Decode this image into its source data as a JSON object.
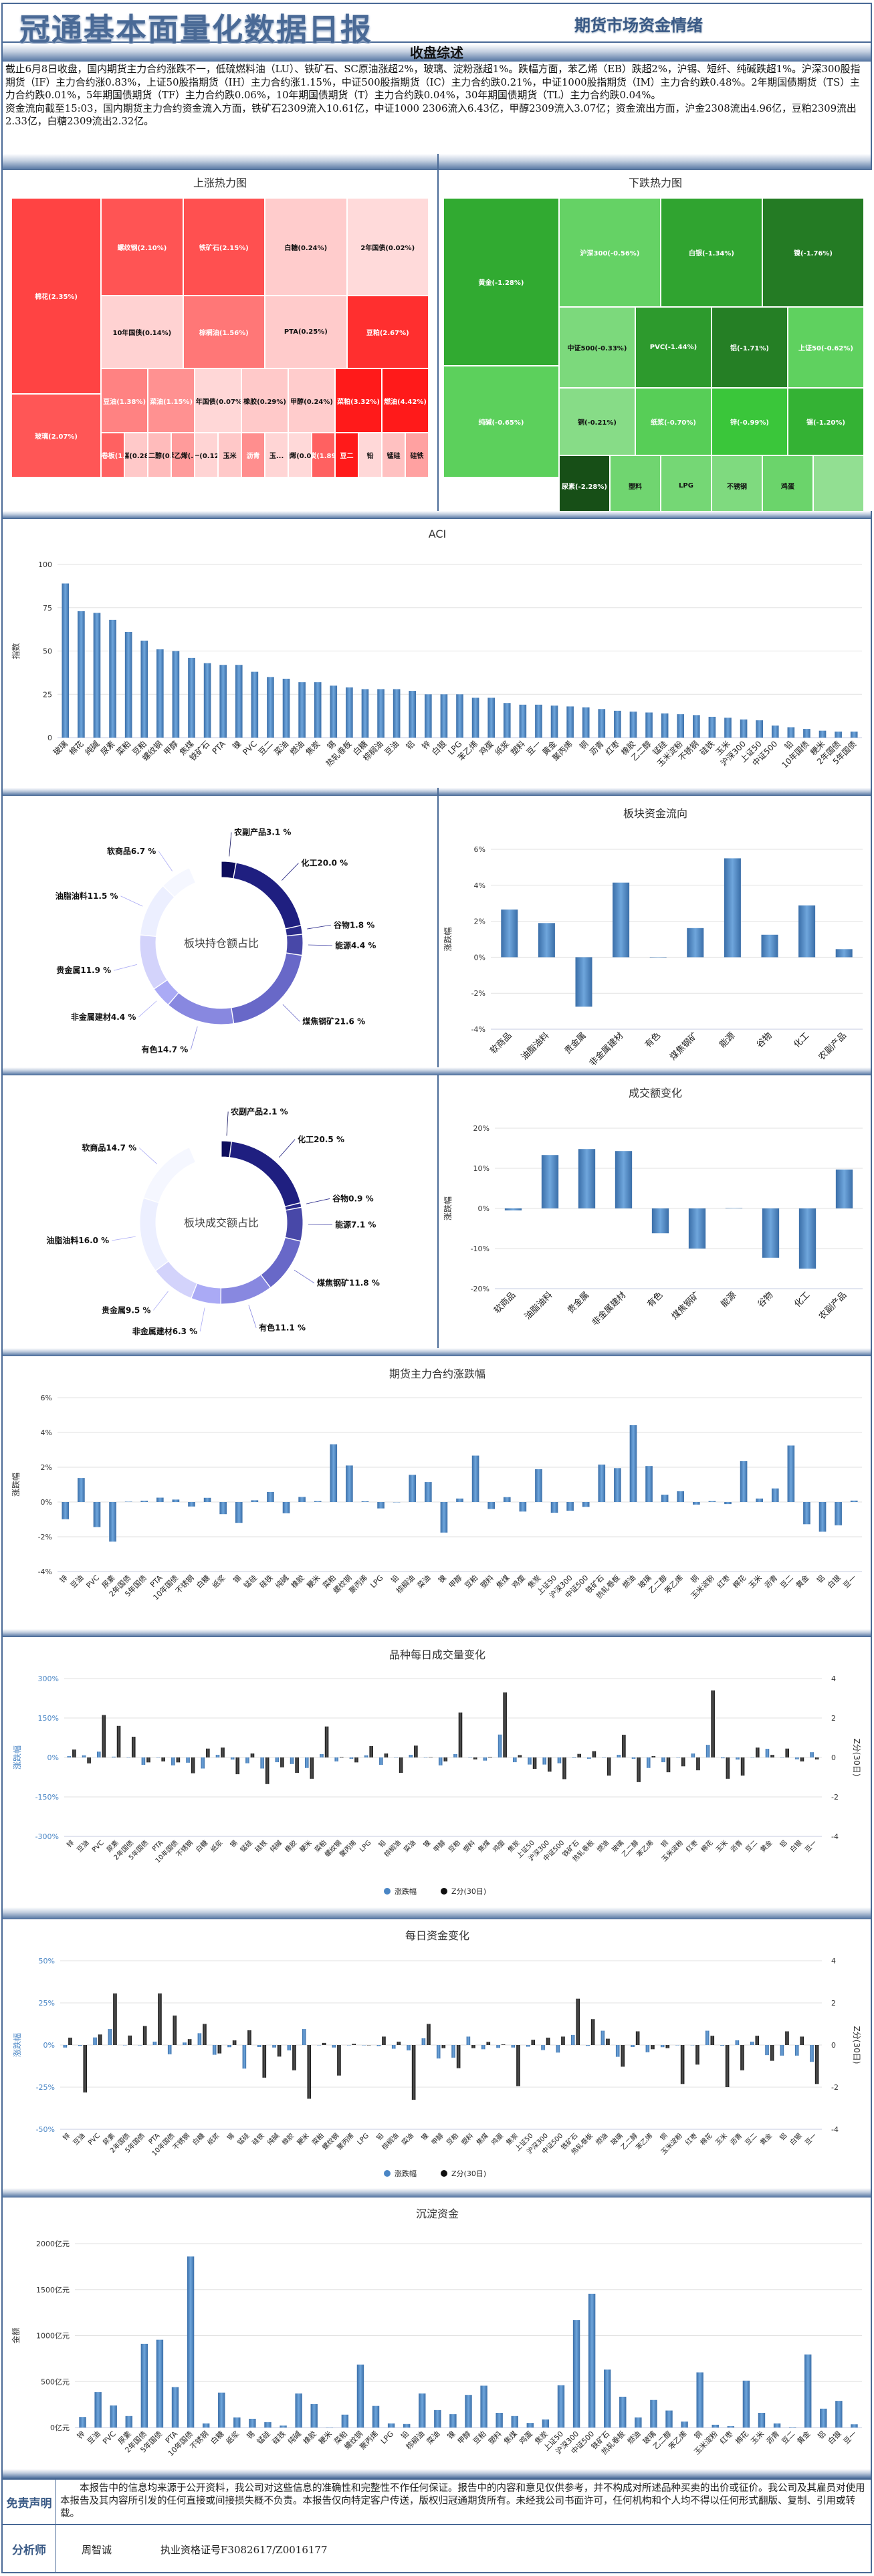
{
  "header": {
    "title": "冠通基本面量化数据日报",
    "subtitle": "期货市场资金情绪"
  },
  "summary": {
    "heading": "收盘综述",
    "paragraph1": "截止6月8日收盘，国内期货主力合约涨跌不一，低硫燃料油（LU）、铁矿石、SC原油涨超2%，玻璃、淀粉涨超1%。跌幅方面，苯乙烯（EB）跌超2%，沪锡、短纤、纯碱跌超1%。沪深300股指期货（IF）主力合约涨0.83%，上证50股指期货（IH）主力合约涨1.15%，中证500股指期货（IC）主力合约跌0.21%，中证1000股指期货（IM）主力合约跌0.48%。2年期国债期货（TS）主力合约跌0.01%，5年期国债期货（TF）主力合约跌0.06%，10年期国债期货（T）主力合约跌0.04%，30年期国债期货（TL）主力合约跌0.04%。",
    "paragraph2": "资金流向截至15:03，国内期货主力合约资金流入方面，铁矿石2309流入10.61亿，中证1000 2306流入6.43亿，甲醇2309流入3.07亿；资金流出方面，沪金2308流出4.96亿，豆粕2309流出2.33亿，白糖2309流出2.32亿。"
  },
  "heatmaps": {
    "up": {
      "title": "上涨热力图",
      "cells": [
        {
          "label": "棉花(2.35%)",
          "value": 2.35
        },
        {
          "label": "玻璃(2.07%)",
          "value": 2.07
        },
        {
          "label": "螺纹钢(2.10%)",
          "value": 2.1
        },
        {
          "label": "铁矿石(2.15%)",
          "value": 2.15
        },
        {
          "label": "白糖(0.24%)",
          "value": 0.24
        },
        {
          "label": "2年国债(0.02%)",
          "value": 0.02
        },
        {
          "label": "10年国债(0.14%)",
          "value": 0.14
        },
        {
          "label": "棕榈油(1.56%)",
          "value": 1.56
        },
        {
          "label": "PTA(0.25%)",
          "value": 0.25
        },
        {
          "label": "豆粕(2.67%)",
          "value": 2.67
        },
        {
          "label": "豆油(1.38%)",
          "value": 1.38
        },
        {
          "label": "菜油(1.15%)",
          "value": 1.15
        },
        {
          "label": "5年国债(0.07%)",
          "value": 0.07
        },
        {
          "label": "橡胶(0.29%)",
          "value": 0.29
        },
        {
          "label": "甲醇(0.24%)",
          "value": 0.24
        },
        {
          "label": "菜粕(3.32%)",
          "value": 3.32
        },
        {
          "label": "燃油(4.42%)",
          "value": 4.42
        },
        {
          "label": "热轧卷板(1.9...",
          "value": 1.9
        },
        {
          "label": "焦煤(0.28...",
          "value": 0.28
        },
        {
          "label": "乙二醇(0...",
          "value": 0.5
        },
        {
          "label": "苯乙烯(...",
          "value": 1.0
        },
        {
          "label": "豆一(0.12...",
          "value": 0.12
        },
        {
          "label": "玉米",
          "value": 0.3
        },
        {
          "label": "沥青",
          "value": 1.2
        },
        {
          "label": "玉...",
          "value": 0.1
        },
        {
          "label": "聚丙烯(0.04...",
          "value": 0.04
        },
        {
          "label": "焦炭(1.89...",
          "value": 1.89
        },
        {
          "label": "豆二",
          "value": 3.0
        },
        {
          "label": "铅",
          "value": 0.05
        },
        {
          "label": "锰硅",
          "value": 0.4
        },
        {
          "label": "硅铁",
          "value": 0.9
        }
      ]
    },
    "down": {
      "title": "下跌热力图",
      "cells": [
        {
          "label": "黄金(-1.28%)",
          "value": -1.28
        },
        {
          "label": "纯碱(-0.65%)",
          "value": -0.65
        },
        {
          "label": "沪深300(-0.56%)",
          "value": -0.56
        },
        {
          "label": "白银(-1.34%)",
          "value": -1.34
        },
        {
          "label": "镍(-1.76%)",
          "value": -1.76
        },
        {
          "label": "中证500(-0.33%)",
          "value": -0.33
        },
        {
          "label": "PVC(-1.44%)",
          "value": -1.44
        },
        {
          "label": "铝(-1.71%)",
          "value": -1.71
        },
        {
          "label": "上证50(-0.62%)",
          "value": -0.62
        },
        {
          "label": "铜(-0.21%)",
          "value": -0.21
        },
        {
          "label": "纸浆(-0.70%)",
          "value": -0.7
        },
        {
          "label": "锌(-0.99%)",
          "value": -0.99
        },
        {
          "label": "锡(-1.20%)",
          "value": -1.2
        },
        {
          "label": "尿素(-2.28%)",
          "value": -2.28
        },
        {
          "label": "塑料",
          "value": -0.45
        },
        {
          "label": "LPG",
          "value": -0.4
        },
        {
          "label": "不锈钢",
          "value": -0.3
        },
        {
          "label": "鸡蛋",
          "value": -0.5
        },
        {
          "label": "",
          "value": -0.1
        }
      ]
    }
  },
  "chart_data": [
    {
      "id": "aci",
      "type": "bar",
      "title": "ACI",
      "xlabel": "",
      "ylabel": "指数",
      "ylim": [
        0,
        100
      ],
      "yticks": [
        0,
        25,
        50,
        75,
        100
      ],
      "categories": [
        "玻璃",
        "棉花",
        "纯碱",
        "尿素",
        "菜粕",
        "豆粕",
        "螺纹钢",
        "甲醇",
        "焦煤",
        "铁矿石",
        "PTA",
        "镍",
        "PVC",
        "豆二",
        "菜油",
        "燃油",
        "焦炭",
        "锡",
        "热轧卷板",
        "白糖",
        "棕榈油",
        "豆油",
        "铝",
        "锌",
        "白银",
        "LPG",
        "苯乙烯",
        "鸡蛋",
        "纸浆",
        "塑料",
        "豆一",
        "黄金",
        "聚丙烯",
        "铜",
        "沥青",
        "红枣",
        "橡胶",
        "乙二醇",
        "锰硅",
        "玉米淀粉",
        "不锈钢",
        "硅铁",
        "玉米",
        "沪深300",
        "上证50",
        "中证500",
        "铅",
        "10年国债",
        "粳米",
        "2年国债",
        "5年国债"
      ],
      "values": [
        89,
        73,
        72,
        68,
        61,
        56,
        51,
        50,
        46,
        43,
        42,
        42,
        38,
        35,
        34,
        32,
        32,
        30,
        29,
        28,
        28,
        28,
        27,
        25,
        25,
        25,
        23,
        23,
        20,
        19,
        19,
        18.5,
        18,
        17.5,
        16.5,
        15.5,
        15,
        14.5,
        14,
        13.5,
        13,
        12,
        11.5,
        10.5,
        10,
        7,
        6,
        5,
        4,
        3.5,
        3.5
      ]
    },
    {
      "id": "hold-share",
      "type": "pie",
      "title": "板块持仓额占比",
      "categories": [
        "农副产品",
        "化工",
        "谷物",
        "能源",
        "煤焦钢矿",
        "有色",
        "非金属建材",
        "贵金属",
        "油脂油料",
        "软商品"
      ],
      "values": [
        3.1,
        20.0,
        1.8,
        4.4,
        21.6,
        14.7,
        4.4,
        11.9,
        11.5,
        6.7
      ]
    },
    {
      "id": "sector-flow",
      "type": "bar",
      "title": "板块资金流向",
      "ylabel": "涨跌幅",
      "ylim": [
        -4,
        6
      ],
      "yticks": [
        -4,
        -2,
        0,
        2,
        4,
        6
      ],
      "ysuffix": "%",
      "categories": [
        "软商品",
        "油脂油料",
        "贵金属",
        "非金属建材",
        "有色",
        "煤焦钢矿",
        "能源",
        "谷物",
        "化工",
        "农副产品"
      ],
      "values": [
        2.65,
        1.9,
        -2.75,
        4.15,
        0,
        1.62,
        5.5,
        1.25,
        2.88,
        0.45
      ]
    },
    {
      "id": "turnover-share",
      "type": "pie",
      "title": "板块成交额占比",
      "categories": [
        "农副产品",
        "化工",
        "谷物",
        "能源",
        "煤焦钢矿",
        "有色",
        "非金属建材",
        "贵金属",
        "油脂油料",
        "软商品"
      ],
      "values": [
        2.1,
        20.5,
        0.9,
        7.1,
        11.8,
        11.1,
        6.3,
        9.5,
        16.0,
        14.7
      ]
    },
    {
      "id": "turnover-change",
      "type": "bar",
      "title": "成交额变化",
      "ylabel": "涨跌幅",
      "ylim": [
        -20,
        20
      ],
      "yticks": [
        -20,
        -10,
        0,
        10,
        20
      ],
      "ysuffix": "%",
      "categories": [
        "软商品",
        "油脂油料",
        "贵金属",
        "非金属建材",
        "有色",
        "煤焦钢矿",
        "能源",
        "谷物",
        "化工",
        "农副产品"
      ],
      "values": [
        -0.5,
        13.3,
        14.8,
        14.3,
        -6.2,
        -10,
        0.1,
        -12.3,
        -15,
        9.7
      ]
    },
    {
      "id": "main-contract-change",
      "type": "bar",
      "title": "期货主力合约涨跌幅",
      "ylabel": "涨跌幅",
      "ylim": [
        -4,
        6
      ],
      "yticks": [
        -4,
        -2,
        0,
        2,
        4,
        6
      ],
      "ysuffix": "%",
      "categories": [
        "锌",
        "豆油",
        "PVC",
        "尿素",
        "2年国债",
        "5年国债",
        "PTA",
        "10年国债",
        "不锈钢",
        "白糖",
        "纸浆",
        "锡",
        "锰硅",
        "硅铁",
        "纯碱",
        "橡胶",
        "粳米",
        "菜粕",
        "螺纹钢",
        "聚丙烯",
        "LPG",
        "铅",
        "棕榈油",
        "菜油",
        "镍",
        "甲醇",
        "豆粕",
        "塑料",
        "焦煤",
        "鸡蛋",
        "焦炭",
        "上证50",
        "沪深300",
        "中证500",
        "铁矿石",
        "热轧卷板",
        "燃油",
        "玻璃",
        "乙二醇",
        "苯乙烯",
        "铜",
        "玉米淀粉",
        "红枣",
        "棉花",
        "玉米",
        "沥青",
        "豆二",
        "黄金",
        "铝",
        "白银",
        "豆一"
      ],
      "values": [
        -0.99,
        1.38,
        -1.44,
        -2.28,
        0.02,
        0.07,
        0.25,
        0.14,
        -0.26,
        0.24,
        -0.7,
        -1.2,
        0.1,
        0.58,
        -0.65,
        0.29,
        0.05,
        3.32,
        2.1,
        0.04,
        -0.37,
        0,
        1.56,
        1.15,
        -1.76,
        0.2,
        2.67,
        -0.4,
        0.28,
        -0.55,
        1.89,
        -0.62,
        -0.5,
        -0.28,
        2.15,
        1.95,
        4.42,
        2.07,
        0.42,
        0.62,
        -0.15,
        0.05,
        -0.12,
        2.35,
        0.2,
        0.78,
        3.25,
        -1.28,
        -1.71,
        -1.34,
        0.08
      ]
    },
    {
      "id": "volume-change",
      "type": "bar",
      "title": "品种每日成交量变化",
      "ylabel": "涨跌幅",
      "ylabel2": "Z分(30日)",
      "ylim": [
        -300,
        300
      ],
      "yticks": [
        -300,
        -150,
        0,
        150,
        300
      ],
      "ysuffix": "%",
      "y2lim": [
        -4,
        4
      ],
      "y2ticks": [
        -4,
        -2,
        0,
        2,
        4
      ],
      "legend": [
        "涨跌幅",
        "Z分(30日)"
      ],
      "categories": [
        "锌",
        "豆油",
        "PVC",
        "尿素",
        "2年国债",
        "5年国债",
        "PTA",
        "10年国债",
        "不锈钢",
        "白糖",
        "纸浆",
        "锡",
        "锰硅",
        "硅铁",
        "纯碱",
        "橡胶",
        "粳米",
        "菜粕",
        "螺纹钢",
        "聚丙烯",
        "LPG",
        "铅",
        "棕榈油",
        "菜油",
        "镍",
        "甲醇",
        "豆粕",
        "塑料",
        "焦煤",
        "鸡蛋",
        "焦炭",
        "上证50",
        "沪深300",
        "中证500",
        "铁矿石",
        "热轧卷板",
        "燃油",
        "玻璃",
        "乙二醇",
        "苯乙烯",
        "铜",
        "玉米淀粉",
        "红枣",
        "棉花",
        "玉米",
        "沥青",
        "豆二",
        "黄金",
        "铝",
        "白银",
        "豆一"
      ],
      "series": [
        {
          "name": "涨跌幅",
          "values": [
            5,
            8,
            22,
            3,
            0,
            -28,
            0,
            -30,
            -20,
            -42,
            10,
            -8,
            -22,
            -42,
            -18,
            -25,
            -40,
            13,
            -15,
            -5,
            8,
            -28,
            0,
            10,
            0,
            -30,
            13,
            0,
            -12,
            87,
            -18,
            -27,
            -27,
            -22,
            -2,
            -5,
            0,
            10,
            -5,
            -40,
            -18,
            0,
            15,
            48,
            -3,
            -8,
            0,
            33,
            0,
            -7,
            20
          ]
        },
        {
          "name": "Z分(30日)",
          "values": [
            0.4,
            -0.3,
            2.15,
            1.6,
            1.05,
            -0.25,
            -0.2,
            -0.25,
            -0.8,
            0.45,
            0.5,
            -0.85,
            0.2,
            -1.35,
            -0.5,
            -0.78,
            -1.08,
            1.57,
            0.03,
            -0.25,
            0.58,
            0.2,
            -0.78,
            0.6,
            0.02,
            -0.2,
            2.28,
            -0.1,
            0.03,
            3.3,
            0.12,
            -0.58,
            -0.72,
            -1.1,
            0.18,
            0.32,
            -0.92,
            1.15,
            -1.25,
            0.07,
            -0.75,
            -0.45,
            -0.65,
            3.4,
            -1.08,
            -0.92,
            0.5,
            0.13,
            0.45,
            -0.2,
            -0.1
          ]
        }
      ]
    },
    {
      "id": "capital-change",
      "type": "bar",
      "title": "每日资金变化",
      "ylabel": "涨跌幅",
      "ylabel2": "Z分(30日)",
      "ylim": [
        -50,
        50
      ],
      "yticks": [
        -50,
        -25,
        0,
        25,
        50
      ],
      "ysuffix": "%",
      "y2lim": [
        -4,
        4
      ],
      "y2ticks": [
        -4,
        -2,
        0,
        2,
        4
      ],
      "legend": [
        "涨跌幅",
        "Z分(30日)"
      ],
      "categories": [
        "锌",
        "豆油",
        "PVC",
        "尿素",
        "2年国债",
        "5年国债",
        "PTA",
        "10年国债",
        "不锈钢",
        "白糖",
        "纸浆",
        "锡",
        "锰硅",
        "硅铁",
        "纯碱",
        "橡胶",
        "粳米",
        "菜粕",
        "螺纹钢",
        "聚丙烯",
        "LPG",
        "铅",
        "棕榈油",
        "菜油",
        "镍",
        "甲醇",
        "豆粕",
        "塑料",
        "焦煤",
        "鸡蛋",
        "焦炭",
        "上证50",
        "沪深300",
        "中证500",
        "铁矿石",
        "热轧卷板",
        "燃油",
        "玻璃",
        "乙二醇",
        "苯乙烯",
        "铜",
        "玉米淀粉",
        "红枣",
        "棉花",
        "玉米",
        "沥青",
        "豆二",
        "黄金",
        "铝",
        "白银",
        "豆一"
      ],
      "series": [
        {
          "name": "涨跌幅",
          "values": [
            -1.5,
            -0.5,
            4.5,
            9.5,
            0,
            0,
            2,
            -5.5,
            1.5,
            7,
            -5.8,
            -1.3,
            -14,
            -1.2,
            -1.5,
            -3.2,
            9.5,
            0,
            -1.5,
            0,
            0,
            -0.6,
            -2.2,
            -3.2,
            4,
            -8,
            -7.5,
            5,
            -2.5,
            -1.7,
            -1.5,
            -1,
            -3,
            -4.5,
            6,
            -0.5,
            8.5,
            -7,
            -1.2,
            -4.3,
            -1.3,
            0,
            0,
            8.5,
            -0.4,
            2.8,
            2,
            -6,
            -6.3,
            -6.3,
            -10
          ]
        },
        {
          "name": "Z分(30日)",
          "values": [
            0.35,
            -2.25,
            0.5,
            2.45,
            0.45,
            0.9,
            2.45,
            1.4,
            0.28,
            1,
            -0.4,
            0.22,
            0.7,
            -1.55,
            -0.55,
            -1.2,
            -2.55,
            0.1,
            -1.45,
            0.06,
            0,
            0.4,
            0.16,
            -2.6,
            1,
            -0.15,
            -1.1,
            -0.15,
            0.15,
            0.03,
            -1.95,
            0.25,
            0.35,
            0.4,
            2.2,
            1.23,
            0.3,
            -1.03,
            0.65,
            -0.2,
            -0.15,
            -1.85,
            -0.93,
            0.44,
            -2,
            -1.2,
            0.44,
            -0.75,
            0.65,
            0.4,
            -1.85
          ]
        }
      ]
    },
    {
      "id": "settled-capital",
      "type": "bar",
      "title": "沉淀资金",
      "ylabel": "金额",
      "ylim": [
        0,
        2000
      ],
      "yticks": [
        0,
        500,
        1000,
        1500,
        2000
      ],
      "ysuffix": "亿元",
      "categories": [
        "锌",
        "豆油",
        "PVC",
        "尿素",
        "2年国债",
        "5年国债",
        "PTA",
        "10年国债",
        "不锈钢",
        "白糖",
        "纸浆",
        "锡",
        "锰硅",
        "硅铁",
        "纯碱",
        "橡胶",
        "粳米",
        "菜粕",
        "螺纹钢",
        "聚丙烯",
        "LPG",
        "铅",
        "棕榈油",
        "菜油",
        "镍",
        "甲醇",
        "豆粕",
        "塑料",
        "焦煤",
        "鸡蛋",
        "焦炭",
        "上证50",
        "沪深300",
        "中证500",
        "铁矿石",
        "热轧卷板",
        "燃油",
        "玻璃",
        "乙二醇",
        "苯乙烯",
        "铜",
        "玉米淀粉",
        "红枣",
        "棉花",
        "玉米",
        "沥青",
        "豆二",
        "黄金",
        "铝",
        "白银",
        "豆一"
      ],
      "values": [
        115,
        385,
        240,
        125,
        910,
        955,
        440,
        1860,
        45,
        380,
        110,
        95,
        58,
        22,
        370,
        255,
        0,
        140,
        685,
        235,
        45,
        38,
        370,
        190,
        145,
        355,
        455,
        160,
        125,
        50,
        88,
        460,
        1170,
        1455,
        630,
        335,
        110,
        300,
        185,
        65,
        600,
        30,
        15,
        510,
        160,
        45,
        5,
        795,
        205,
        290,
        35
      ]
    }
  ],
  "footer": {
    "disclaimer_label": "免责声明",
    "disclaimer_text": "　　本报告中的信息均来源于公开资料，我公司对这些信息的准确性和完整性不作任何保证。报告中的内容和意见仅供参考，并不构成对所述品种买卖的出价或征价。我公司及其雇员对使用本报告及其内容所引发的任何直接或间接损失概不负责。本报告仅向特定客户传送，版权归冠通期货所有。未经我公司书面许可，任何机构和个人均不得以任何形式翻版、复制、引用或转载。",
    "analyst_label": "分析师",
    "analyst_name": "周智诚",
    "license": "执业资格证号F3082617/Z0016177"
  },
  "colors": {
    "frame": "#4a6a96",
    "bar_blue": "#4a86c5",
    "zscore_black": "#1a1a1a"
  }
}
